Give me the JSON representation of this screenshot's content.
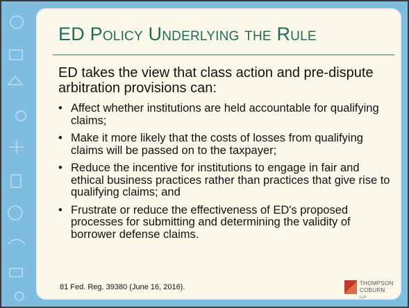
{
  "title": "ED Policy Underlying the Rule",
  "intro": "ED takes the view that class action and pre-dispute arbitration provisions can:",
  "bullets": [
    "Affect whether institutions are held accountable for qualifying claims;",
    "Make it more likely that the costs of losses from qualifying claims will be passed on to the taxpayer;",
    "Reduce the incentive for institutions to engage in fair and ethical business practices rather than practices that give rise to qualifying claims; and",
    "Frustrate or reduce the effectiveness of ED's proposed processes for submitting and determining the validity of borrower defense claims."
  ],
  "citation": "81 Fed. Reg. 39380 (June 16, 2016).",
  "logo": {
    "line1": "THOMPSON",
    "line2": "COBURN",
    "suffix": "LLP"
  }
}
